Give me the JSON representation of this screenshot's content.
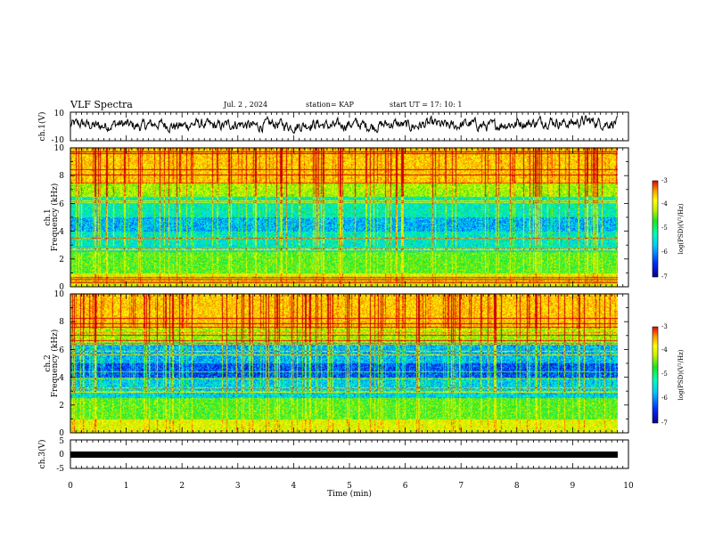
{
  "header": {
    "title": "VLF Spectra",
    "date": "Jul. 2 , 2024",
    "station": "station= KAP",
    "start": "start UT = 17: 10: 1"
  },
  "chart_data": [
    {
      "type": "line",
      "panel": "ch1-waveform",
      "ylabel": "ch.1(V)",
      "ylim": [
        -10,
        10
      ],
      "yticks": [
        "10",
        "-10"
      ],
      "xlim": [
        0,
        10
      ],
      "x_range_plotted": [
        0,
        9.8
      ],
      "series": [
        {
          "description_note": "",
          "values_summary": "noisy waveform approx -3 to 5 V"
        }
      ]
    },
    {
      "type": "heatmap",
      "panel": "ch1-spectrogram",
      "ylabel": "ch.1 Frequency (kHz)",
      "ylim": [
        0,
        10
      ],
      "yticks": [
        "0",
        "2",
        "4",
        "6",
        "8",
        "10"
      ],
      "xlim": [
        0,
        10
      ],
      "colorbar": {
        "label": "log(PSD)(V²/Hz)",
        "range": [
          -7,
          -3
        ],
        "ticks": [
          "-3",
          "-4",
          "-5",
          "-6",
          "-7"
        ]
      }
    },
    {
      "type": "heatmap",
      "panel": "ch2-spectrogram",
      "ylabel": "ch.2 Frequency (kHz)",
      "ylim": [
        0,
        10
      ],
      "yticks": [
        "0",
        "2",
        "4",
        "6",
        "8",
        "10"
      ],
      "xlim": [
        0,
        10
      ],
      "colorbar": {
        "label": "log(PSD)(V²/Hz)",
        "range": [
          -7,
          -3
        ],
        "ticks": [
          "-3",
          "-4",
          "-5",
          "-6",
          "-7"
        ]
      }
    },
    {
      "type": "line",
      "panel": "ch3-waveform",
      "ylabel": "ch.3(V)",
      "ylim": [
        -5,
        5
      ],
      "yticks": [
        "5",
        "0",
        "-5"
      ],
      "xlim": [
        0,
        10
      ],
      "series": [
        {
          "values_summary": "constant near -1 V"
        }
      ]
    }
  ],
  "xaxis": {
    "label": "Time (min)",
    "ticks": [
      "0",
      "1",
      "2",
      "3",
      "4",
      "5",
      "6",
      "7",
      "8",
      "9",
      "10"
    ]
  },
  "colormap": [
    "#08008a",
    "#0030ff",
    "#00b4ff",
    "#00ffc8",
    "#1ee61e",
    "#b4f000",
    "#ffff00",
    "#ffa000",
    "#ff2800",
    "#c80000"
  ]
}
